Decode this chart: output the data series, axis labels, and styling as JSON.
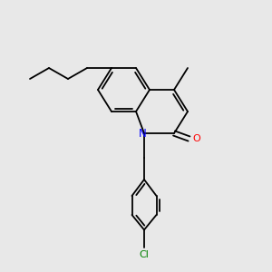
{
  "background_color": "#e8e8e8",
  "fig_width": 3.0,
  "fig_height": 3.0,
  "dpi": 100,
  "bond_color": "#000000",
  "N_color": "#0000ff",
  "O_color": "#ff0000",
  "Cl_color": "#008000",
  "lw": 1.3,
  "xlim": [
    0,
    10
  ],
  "ylim": [
    0,
    10
  ]
}
